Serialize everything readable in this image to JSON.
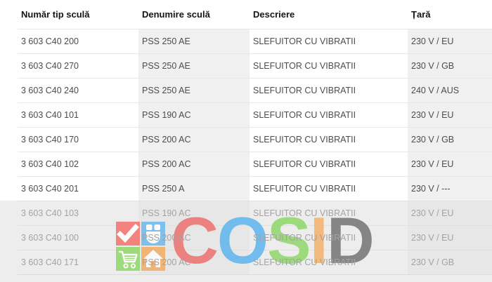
{
  "table": {
    "headers": [
      "Număr tip sculă",
      "Denumire sculă",
      "Descriere",
      "Țară"
    ],
    "rows": [
      {
        "number": "3 603 C40 200",
        "name": "PSS 250 AE",
        "description": "SLEFUITOR CU VIBRATII",
        "country": "230 V / EU",
        "dimmed": false
      },
      {
        "number": "3 603 C40 270",
        "name": "PSS 250 AE",
        "description": "SLEFUITOR CU VIBRATII",
        "country": "230 V / GB",
        "dimmed": false
      },
      {
        "number": "3 603 C40 240",
        "name": "PSS 250 AE",
        "description": "SLEFUITOR CU VIBRATII",
        "country": "240 V / AUS",
        "dimmed": false
      },
      {
        "number": "3 603 C40 101",
        "name": "PSS 190 AC",
        "description": "SLEFUITOR CU VIBRATII",
        "country": "230 V / EU",
        "dimmed": false
      },
      {
        "number": "3 603 C40 170",
        "name": "PSS 200 AC",
        "description": "SLEFUITOR CU VIBRATII",
        "country": "230 V / GB",
        "dimmed": false
      },
      {
        "number": "3 603 C40 102",
        "name": "PSS 200 AC",
        "description": "SLEFUITOR CU VIBRATII",
        "country": "230 V / EU",
        "dimmed": false
      },
      {
        "number": "3 603 C40 201",
        "name": "PSS 250 A",
        "description": "SLEFUITOR CU VIBRATII",
        "country": "230 V / ---",
        "dimmed": false
      },
      {
        "number": "3 603 C40 103",
        "name": "PSS 190 AC",
        "description": "SLEFUITOR CU VIBRATII",
        "country": "230 V / EU",
        "dimmed": true
      },
      {
        "number": "3 603 C40 100",
        "name": "PSS 200 AC",
        "description": "SLEFUITOR CU VIBRATII",
        "country": "230 V / EU",
        "dimmed": true
      },
      {
        "number": "3 603 C40 171",
        "name": "PSS 200 AC",
        "description": "SLEFUITOR CU VIBRATII",
        "country": "230 V / GB",
        "dimmed": true
      }
    ]
  },
  "watermark": {
    "name": "COSID",
    "letters": [
      {
        "char": "C",
        "color": "#ee6d6a"
      },
      {
        "char": "O",
        "color": "#58b2ef"
      },
      {
        "char": "S",
        "color": "#8cd666"
      },
      {
        "char": "I",
        "color": "#f4b064"
      },
      {
        "char": "D",
        "color": "#6f6f6f"
      }
    ],
    "icons": [
      {
        "name": "checkmark-icon",
        "bg": "#f46c66"
      },
      {
        "name": "mouse-icon",
        "bg": "#68b7ee"
      },
      {
        "name": "cart-icon",
        "bg": "#8bd763"
      },
      {
        "name": "house-icon",
        "bg": "#f2a95c"
      }
    ]
  },
  "colors": {
    "column_shade": "#f0f0f0",
    "dim_band": "#ededed",
    "dim_text": "#a3a3a3"
  }
}
